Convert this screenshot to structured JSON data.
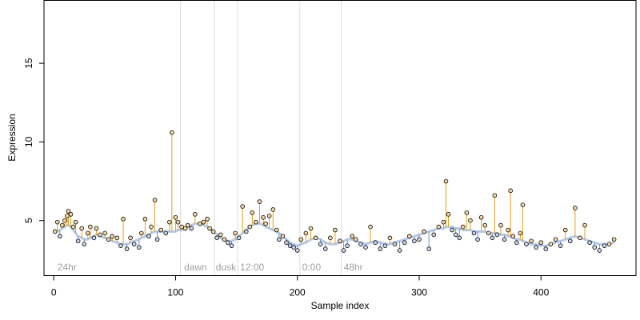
{
  "chart_data": {
    "type": "scatter",
    "title": "",
    "xlabel": "Sample index",
    "ylabel": "Expression",
    "xlim": [
      -8,
      478
    ],
    "ylim": [
      1.5,
      19.0
    ],
    "x_ticks": [
      0,
      100,
      200,
      300,
      400
    ],
    "y_ticks": [
      5,
      10,
      15
    ],
    "grid": false,
    "legend": "none",
    "colors": {
      "baseline": "#7a9fd6",
      "segment_above": "#e0a020",
      "segment_below": "#6f93cc",
      "point_fill_above": "#f4d8a8",
      "point_fill_below": "#c8d6ec",
      "point_stroke": "#000000",
      "separator": "#dddddd",
      "annotation": "#a0a0a0"
    },
    "separators": [
      104,
      132,
      151,
      202,
      236
    ],
    "annotations": [
      {
        "x": 3,
        "label": "24hr"
      },
      {
        "x": 107,
        "label": "dawn"
      },
      {
        "x": 133,
        "label": "dusk"
      },
      {
        "x": 153,
        "label": "12:00"
      },
      {
        "x": 204,
        "label": "0:00"
      },
      {
        "x": 238,
        "label": "48hr"
      }
    ],
    "series": [
      {
        "x": [
          1,
          3,
          5,
          7,
          9,
          11,
          12,
          14,
          16,
          18,
          20,
          23,
          25,
          28,
          30,
          33,
          35,
          38,
          42,
          45,
          48,
          52,
          55,
          57,
          60,
          63,
          66,
          70,
          72,
          75,
          78,
          80,
          83,
          85,
          88,
          92,
          95,
          97,
          100,
          102,
          105,
          108,
          110,
          113,
          116,
          120,
          123,
          126,
          128,
          131,
          134,
          137,
          140,
          143,
          146,
          149,
          152,
          155,
          158,
          161,
          163,
          166,
          169,
          172,
          174,
          177,
          180,
          183,
          185,
          188,
          191,
          194,
          197,
          200,
          203,
          207,
          211,
          215,
          219,
          223,
          227,
          231,
          235,
          238,
          241,
          245,
          248,
          252,
          256,
          260,
          264,
          268,
          272,
          276,
          280,
          284,
          288,
          292,
          296,
          300,
          304,
          308,
          312,
          316,
          320,
          322,
          324,
          327,
          330,
          333,
          336,
          339,
          342,
          345,
          348,
          351,
          354,
          357,
          360,
          362,
          364,
          367,
          370,
          373,
          375,
          377,
          380,
          383,
          385,
          388,
          392,
          396,
          400,
          404,
          408,
          412,
          416,
          420,
          424,
          428,
          432,
          436,
          440,
          444,
          448,
          452,
          456,
          460
        ],
        "y": [
          4.3,
          4.9,
          4.0,
          4.7,
          5.0,
          5.3,
          5.6,
          5.4,
          4.6,
          4.9,
          3.7,
          4.5,
          3.5,
          4.2,
          4.6,
          3.9,
          4.5,
          4.1,
          4.2,
          3.8,
          4.0,
          3.9,
          3.4,
          5.1,
          3.2,
          3.9,
          3.5,
          3.3,
          4.2,
          5.1,
          4.0,
          4.6,
          6.3,
          3.8,
          4.4,
          4.2,
          4.9,
          10.6,
          5.2,
          4.9,
          4.6,
          4.5,
          4.7,
          4.5,
          5.4,
          4.8,
          4.9,
          5.1,
          4.5,
          4.3,
          3.9,
          4.1,
          3.8,
          3.6,
          3.4,
          4.2,
          3.9,
          5.9,
          4.3,
          4.6,
          5.5,
          4.9,
          6.2,
          5.2,
          4.8,
          5.3,
          5.7,
          4.4,
          3.8,
          4.0,
          3.6,
          3.4,
          3.3,
          3.1,
          3.8,
          4.2,
          4.5,
          3.9,
          3.5,
          3.2,
          3.9,
          4.4,
          3.7,
          3.1,
          3.4,
          4.0,
          3.8,
          3.5,
          3.3,
          4.6,
          3.6,
          3.2,
          3.4,
          3.9,
          3.5,
          3.1,
          3.6,
          4.0,
          3.7,
          3.8,
          4.3,
          3.2,
          4.1,
          4.6,
          4.9,
          7.5,
          5.4,
          4.4,
          4.1,
          3.9,
          4.6,
          5.5,
          5.0,
          4.2,
          3.8,
          5.2,
          4.7,
          4.2,
          3.9,
          6.6,
          4.1,
          4.7,
          3.8,
          4.4,
          6.9,
          4.0,
          3.6,
          4.2,
          6.0,
          3.5,
          3.7,
          3.3,
          3.6,
          3.2,
          3.5,
          3.8,
          3.4,
          4.4,
          3.7,
          5.8,
          3.9,
          4.7,
          3.6,
          3.3,
          3.1,
          3.4,
          3.5,
          3.8
        ],
        "baseline": [
          4.2,
          4.3,
          4.4,
          4.5,
          4.6,
          4.7,
          4.7,
          4.6,
          4.4,
          4.2,
          4.0,
          3.9,
          3.8,
          3.8,
          3.9,
          4.0,
          4.1,
          4.0,
          3.9,
          3.8,
          3.7,
          3.6,
          3.5,
          3.5,
          3.5,
          3.6,
          3.7,
          3.8,
          3.9,
          4.0,
          4.1,
          4.2,
          4.3,
          4.3,
          4.3,
          4.3,
          4.3,
          4.3,
          4.3,
          4.4,
          4.4,
          4.5,
          4.6,
          4.7,
          4.8,
          4.8,
          4.7,
          4.6,
          4.5,
          4.3,
          4.1,
          3.9,
          3.8,
          3.7,
          3.7,
          3.8,
          4.0,
          4.2,
          4.4,
          4.6,
          4.7,
          4.8,
          4.8,
          4.7,
          4.6,
          4.5,
          4.4,
          4.3,
          4.2,
          4.0,
          3.8,
          3.6,
          3.5,
          3.4,
          3.5,
          3.6,
          3.8,
          3.9,
          3.8,
          3.6,
          3.5,
          3.5,
          3.6,
          3.7,
          3.8,
          3.8,
          3.7,
          3.6,
          3.5,
          3.6,
          3.7,
          3.6,
          3.5,
          3.5,
          3.6,
          3.7,
          3.8,
          3.9,
          4.0,
          4.1,
          4.2,
          4.3,
          4.4,
          4.5,
          4.5,
          4.6,
          4.6,
          4.6,
          4.5,
          4.5,
          4.4,
          4.4,
          4.4,
          4.3,
          4.3,
          4.3,
          4.3,
          4.2,
          4.2,
          4.2,
          4.2,
          4.1,
          4.1,
          4.0,
          4.0,
          3.9,
          3.8,
          3.8,
          3.7,
          3.6,
          3.5,
          3.5,
          3.4,
          3.4,
          3.5,
          3.6,
          3.7,
          3.8,
          3.9,
          4.0,
          3.9,
          3.8,
          3.7,
          3.6,
          3.5,
          3.5,
          3.5,
          3.6
        ]
      }
    ]
  }
}
